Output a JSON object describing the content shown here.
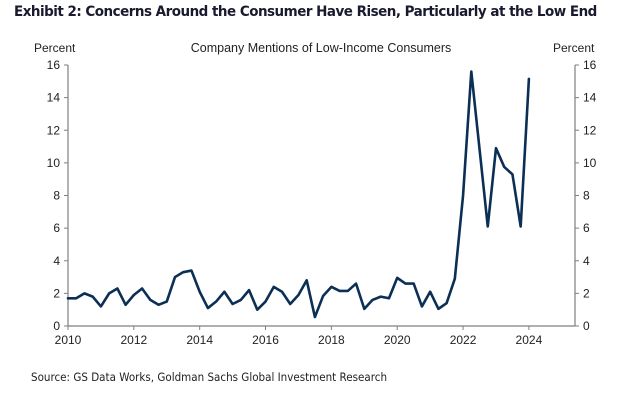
{
  "exhibit_title": "Exhibit 2: Concerns Around the Consumer Have Risen, Particularly at the Low End",
  "source": "Source: GS Data Works, Goldman Sachs Global Investment Research",
  "colors": {
    "line": "#0b2f55",
    "axis": "#7f7f7f",
    "text": "#222222"
  },
  "chart_data": {
    "type": "line",
    "title": "Company Mentions of Low-Income Consumers",
    "ylabel_left": "Percent",
    "ylabel_right": "Percent",
    "xlabel": "",
    "xlim": [
      2010,
      2025.4
    ],
    "ylim": [
      0,
      16
    ],
    "x_ticks": [
      2010,
      2012,
      2014,
      2016,
      2018,
      2020,
      2022,
      2024
    ],
    "x_tick_labels": [
      "2010",
      "2012",
      "2014",
      "2016",
      "2018",
      "2020",
      "2022",
      "2024"
    ],
    "y_ticks": [
      0,
      2,
      4,
      6,
      8,
      10,
      12,
      14,
      16
    ],
    "y_tick_labels": [
      "0",
      "2",
      "4",
      "6",
      "8",
      "10",
      "12",
      "14",
      "16"
    ],
    "grid": false,
    "legend": "none",
    "frequency": "quarterly",
    "series": [
      {
        "name": "Company Mentions of Low-Income Consumers",
        "x_start": 2010.0,
        "x_step": 0.25,
        "values": [
          1.7,
          1.7,
          2.0,
          1.8,
          1.2,
          2.0,
          2.3,
          1.3,
          1.9,
          2.3,
          1.6,
          1.3,
          1.5,
          3.0,
          3.3,
          3.4,
          2.1,
          1.1,
          1.5,
          2.1,
          1.35,
          1.6,
          2.2,
          1.0,
          1.5,
          2.4,
          2.1,
          1.35,
          1.9,
          2.8,
          0.55,
          1.85,
          2.4,
          2.15,
          2.15,
          2.6,
          1.05,
          1.6,
          1.8,
          1.7,
          2.95,
          2.6,
          2.6,
          1.2,
          2.1,
          1.05,
          1.4,
          2.9,
          8.0,
          15.6,
          10.85,
          6.1,
          10.9,
          9.75,
          9.3,
          6.1,
          15.15
        ]
      }
    ]
  }
}
